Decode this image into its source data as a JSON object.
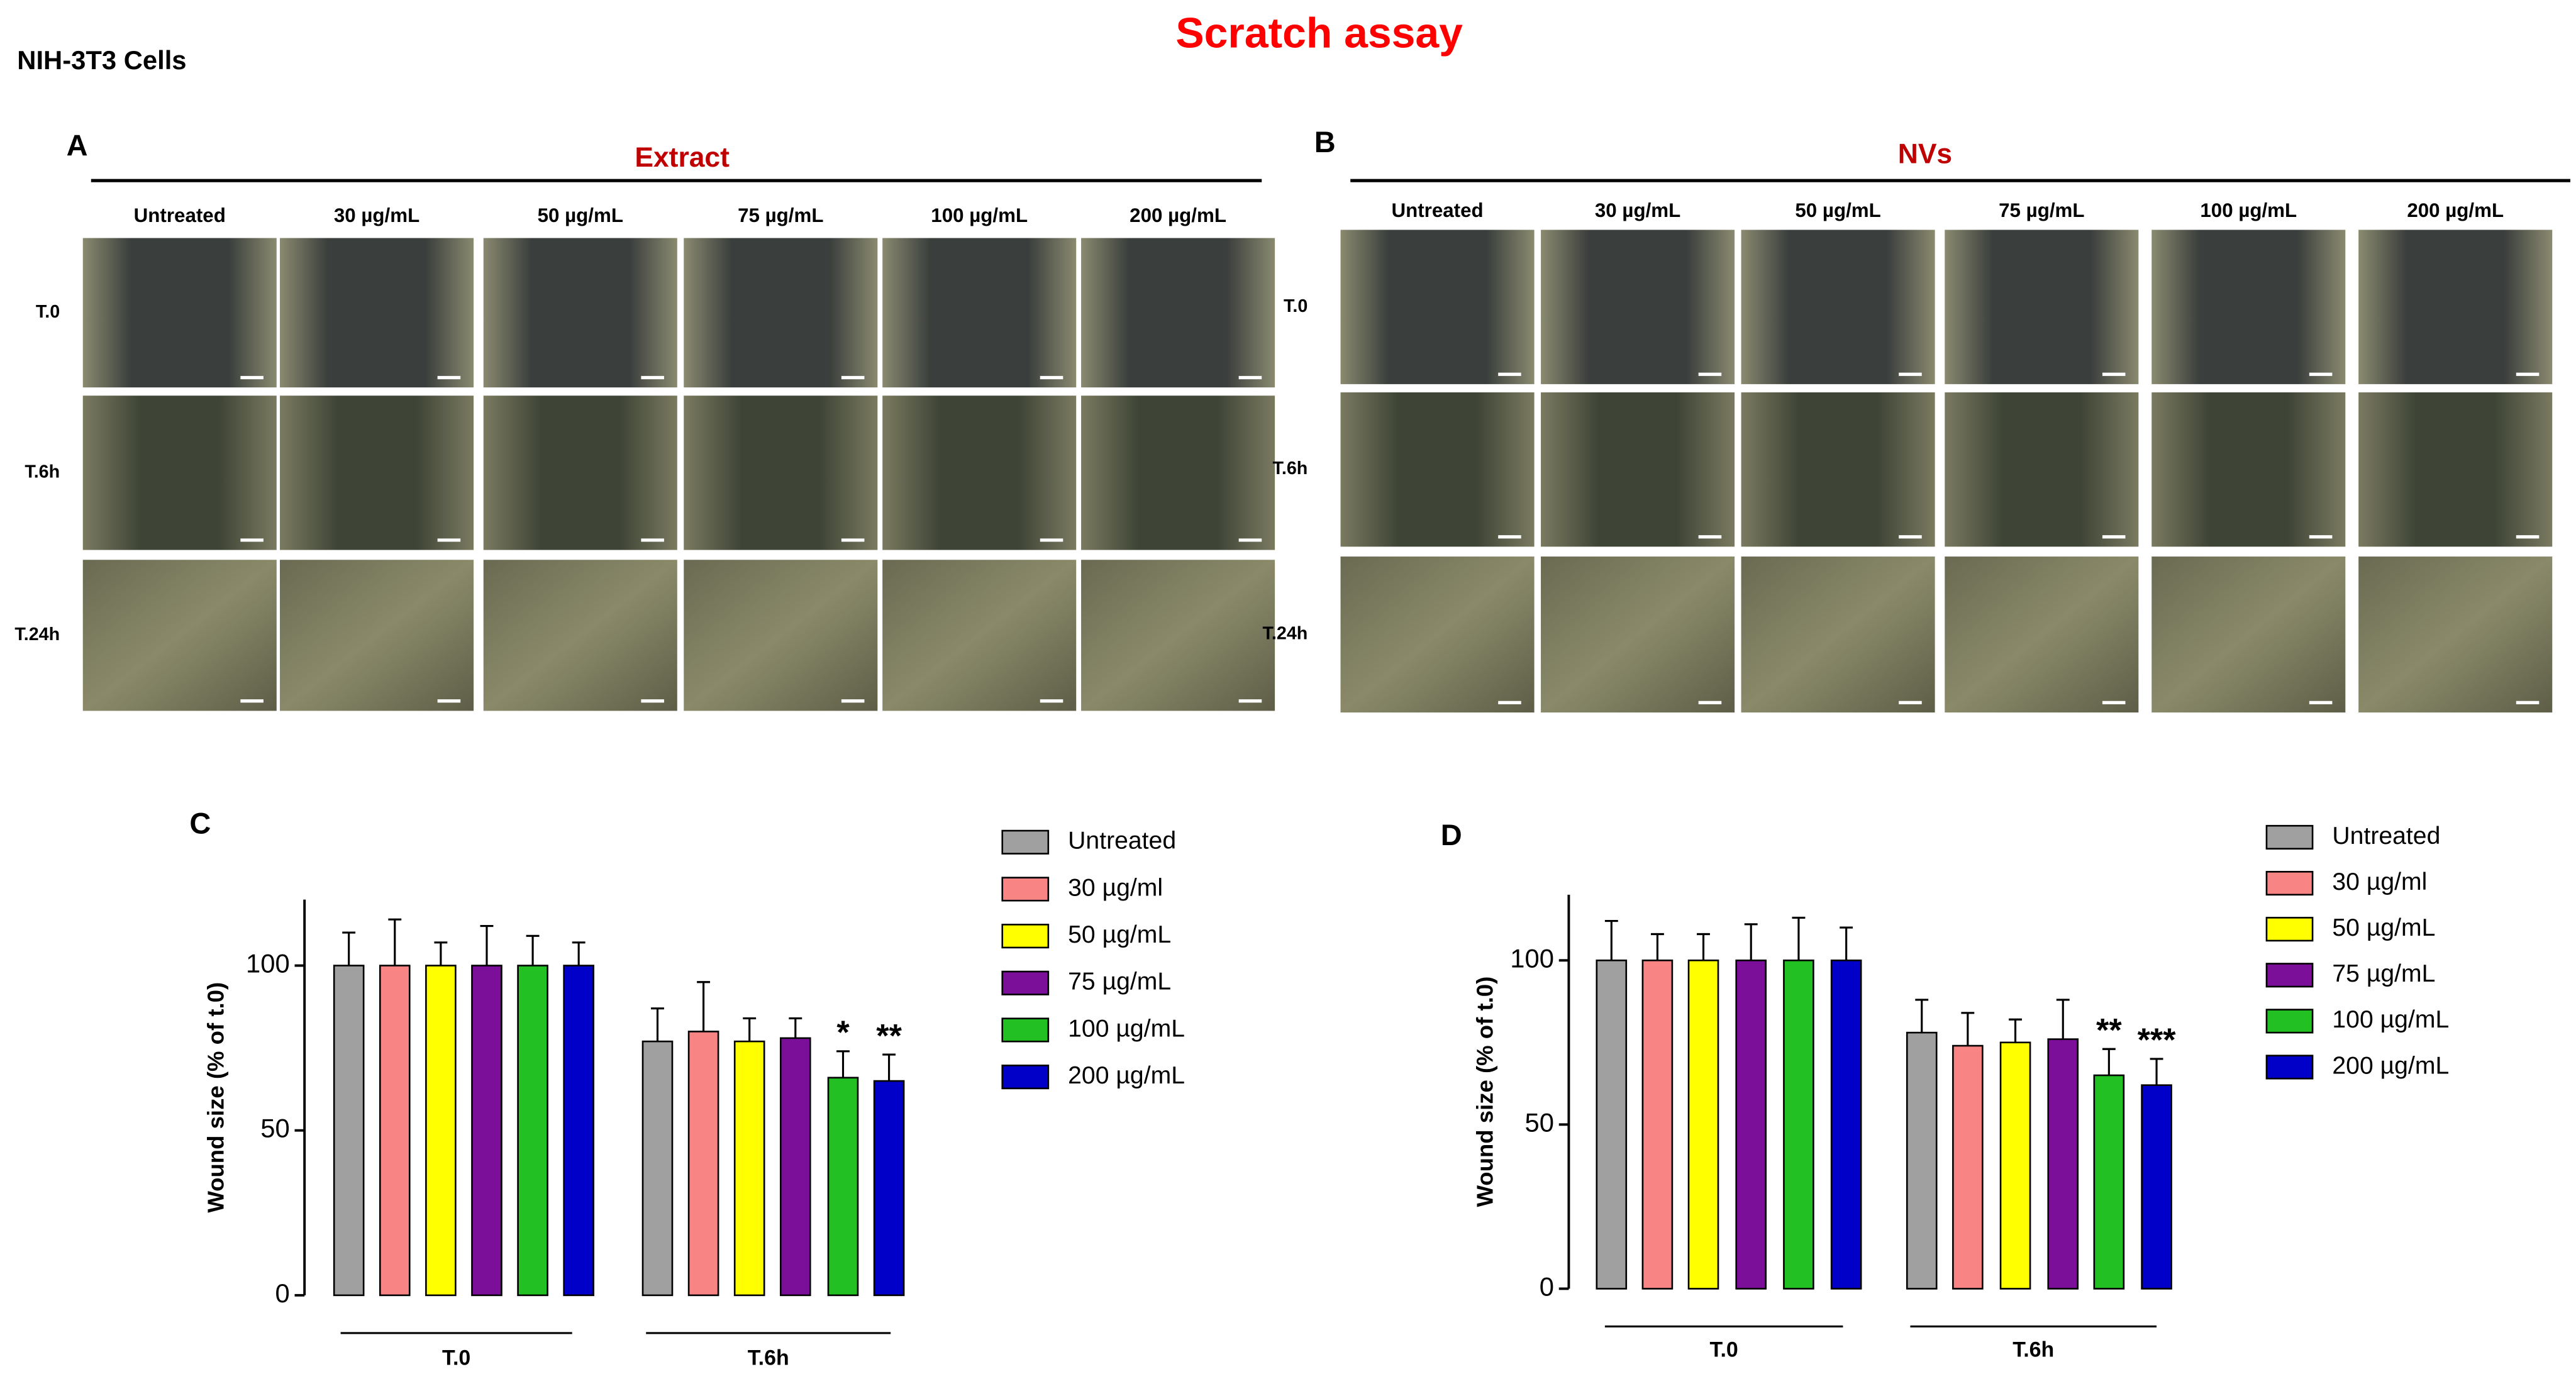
{
  "title": "Scratch assay",
  "cell_line": "NIH-3T3 Cells",
  "panels": [
    {
      "label": "A",
      "heading": "Extract",
      "columns": [
        "Untreated",
        "30 µg/mL",
        "50 µg/mL",
        "75 µg/mL",
        "100 µg/mL",
        "200 µg/mL"
      ],
      "rows": [
        "T.0",
        "T.6h",
        "T.24h"
      ]
    },
    {
      "label": "B",
      "heading": "NVs",
      "columns": [
        "Untreated",
        "30 µg/mL",
        "50 µg/mL",
        "75 µg/mL",
        "100 µg/mL",
        "200 µg/mL"
      ],
      "rows": [
        "T.0",
        "T.6h",
        "T.24h"
      ]
    }
  ],
  "chart_data": [
    {
      "type": "bar",
      "panel_label": "C",
      "y_label": "Wound size (% of t.0)",
      "categories": [
        "T.0",
        "T.6h"
      ],
      "ylim": [
        0,
        120
      ],
      "yticks": [
        0,
        50,
        100
      ],
      "grid": false,
      "series": [
        {
          "name": "Untreated",
          "color": "#a0a0a0",
          "values": [
            100,
            77
          ],
          "errors": [
            10,
            10
          ],
          "significance": [
            null,
            null
          ]
        },
        {
          "name": "30 µg/ml",
          "color": "#f88484",
          "values": [
            100,
            80
          ],
          "errors": [
            14,
            15
          ],
          "significance": [
            null,
            null
          ]
        },
        {
          "name": "50 µg/mL",
          "color": "#ffff00",
          "values": [
            100,
            77
          ],
          "errors": [
            7,
            7
          ],
          "significance": [
            null,
            null
          ]
        },
        {
          "name": "75 µg/mL",
          "color": "#7b0f99",
          "values": [
            100,
            78
          ],
          "errors": [
            12,
            6
          ],
          "significance": [
            null,
            null
          ]
        },
        {
          "name": "100 µg/mL",
          "color": "#22c022",
          "values": [
            100,
            66
          ],
          "errors": [
            9,
            8
          ],
          "significance": [
            null,
            "*"
          ]
        },
        {
          "name": "200 µg/mL",
          "color": "#0000c8",
          "values": [
            100,
            65
          ],
          "errors": [
            7,
            8
          ],
          "significance": [
            null,
            "**"
          ]
        }
      ]
    },
    {
      "type": "bar",
      "panel_label": "D",
      "y_label": "Wound size (% of t.0)",
      "categories": [
        "T.0",
        "T.6h"
      ],
      "ylim": [
        0,
        120
      ],
      "yticks": [
        0,
        50,
        100
      ],
      "grid": false,
      "series": [
        {
          "name": "Untreated",
          "color": "#a0a0a0",
          "values": [
            100,
            78
          ],
          "errors": [
            12,
            10
          ],
          "significance": [
            null,
            null
          ]
        },
        {
          "name": "30 µg/ml",
          "color": "#f88484",
          "values": [
            100,
            74
          ],
          "errors": [
            8,
            10
          ],
          "significance": [
            null,
            null
          ]
        },
        {
          "name": "50 µg/mL",
          "color": "#ffff00",
          "values": [
            100,
            75
          ],
          "errors": [
            8,
            7
          ],
          "significance": [
            null,
            null
          ]
        },
        {
          "name": "75 µg/mL",
          "color": "#7b0f99",
          "values": [
            100,
            76
          ],
          "errors": [
            11,
            12
          ],
          "significance": [
            null,
            null
          ]
        },
        {
          "name": "100 µg/mL",
          "color": "#22c022",
          "values": [
            100,
            65
          ],
          "errors": [
            13,
            8
          ],
          "significance": [
            null,
            "**"
          ]
        },
        {
          "name": "200 µg/mL",
          "color": "#0000c8",
          "values": [
            100,
            62
          ],
          "errors": [
            10,
            8
          ],
          "significance": [
            null,
            "***"
          ]
        }
      ]
    }
  ]
}
